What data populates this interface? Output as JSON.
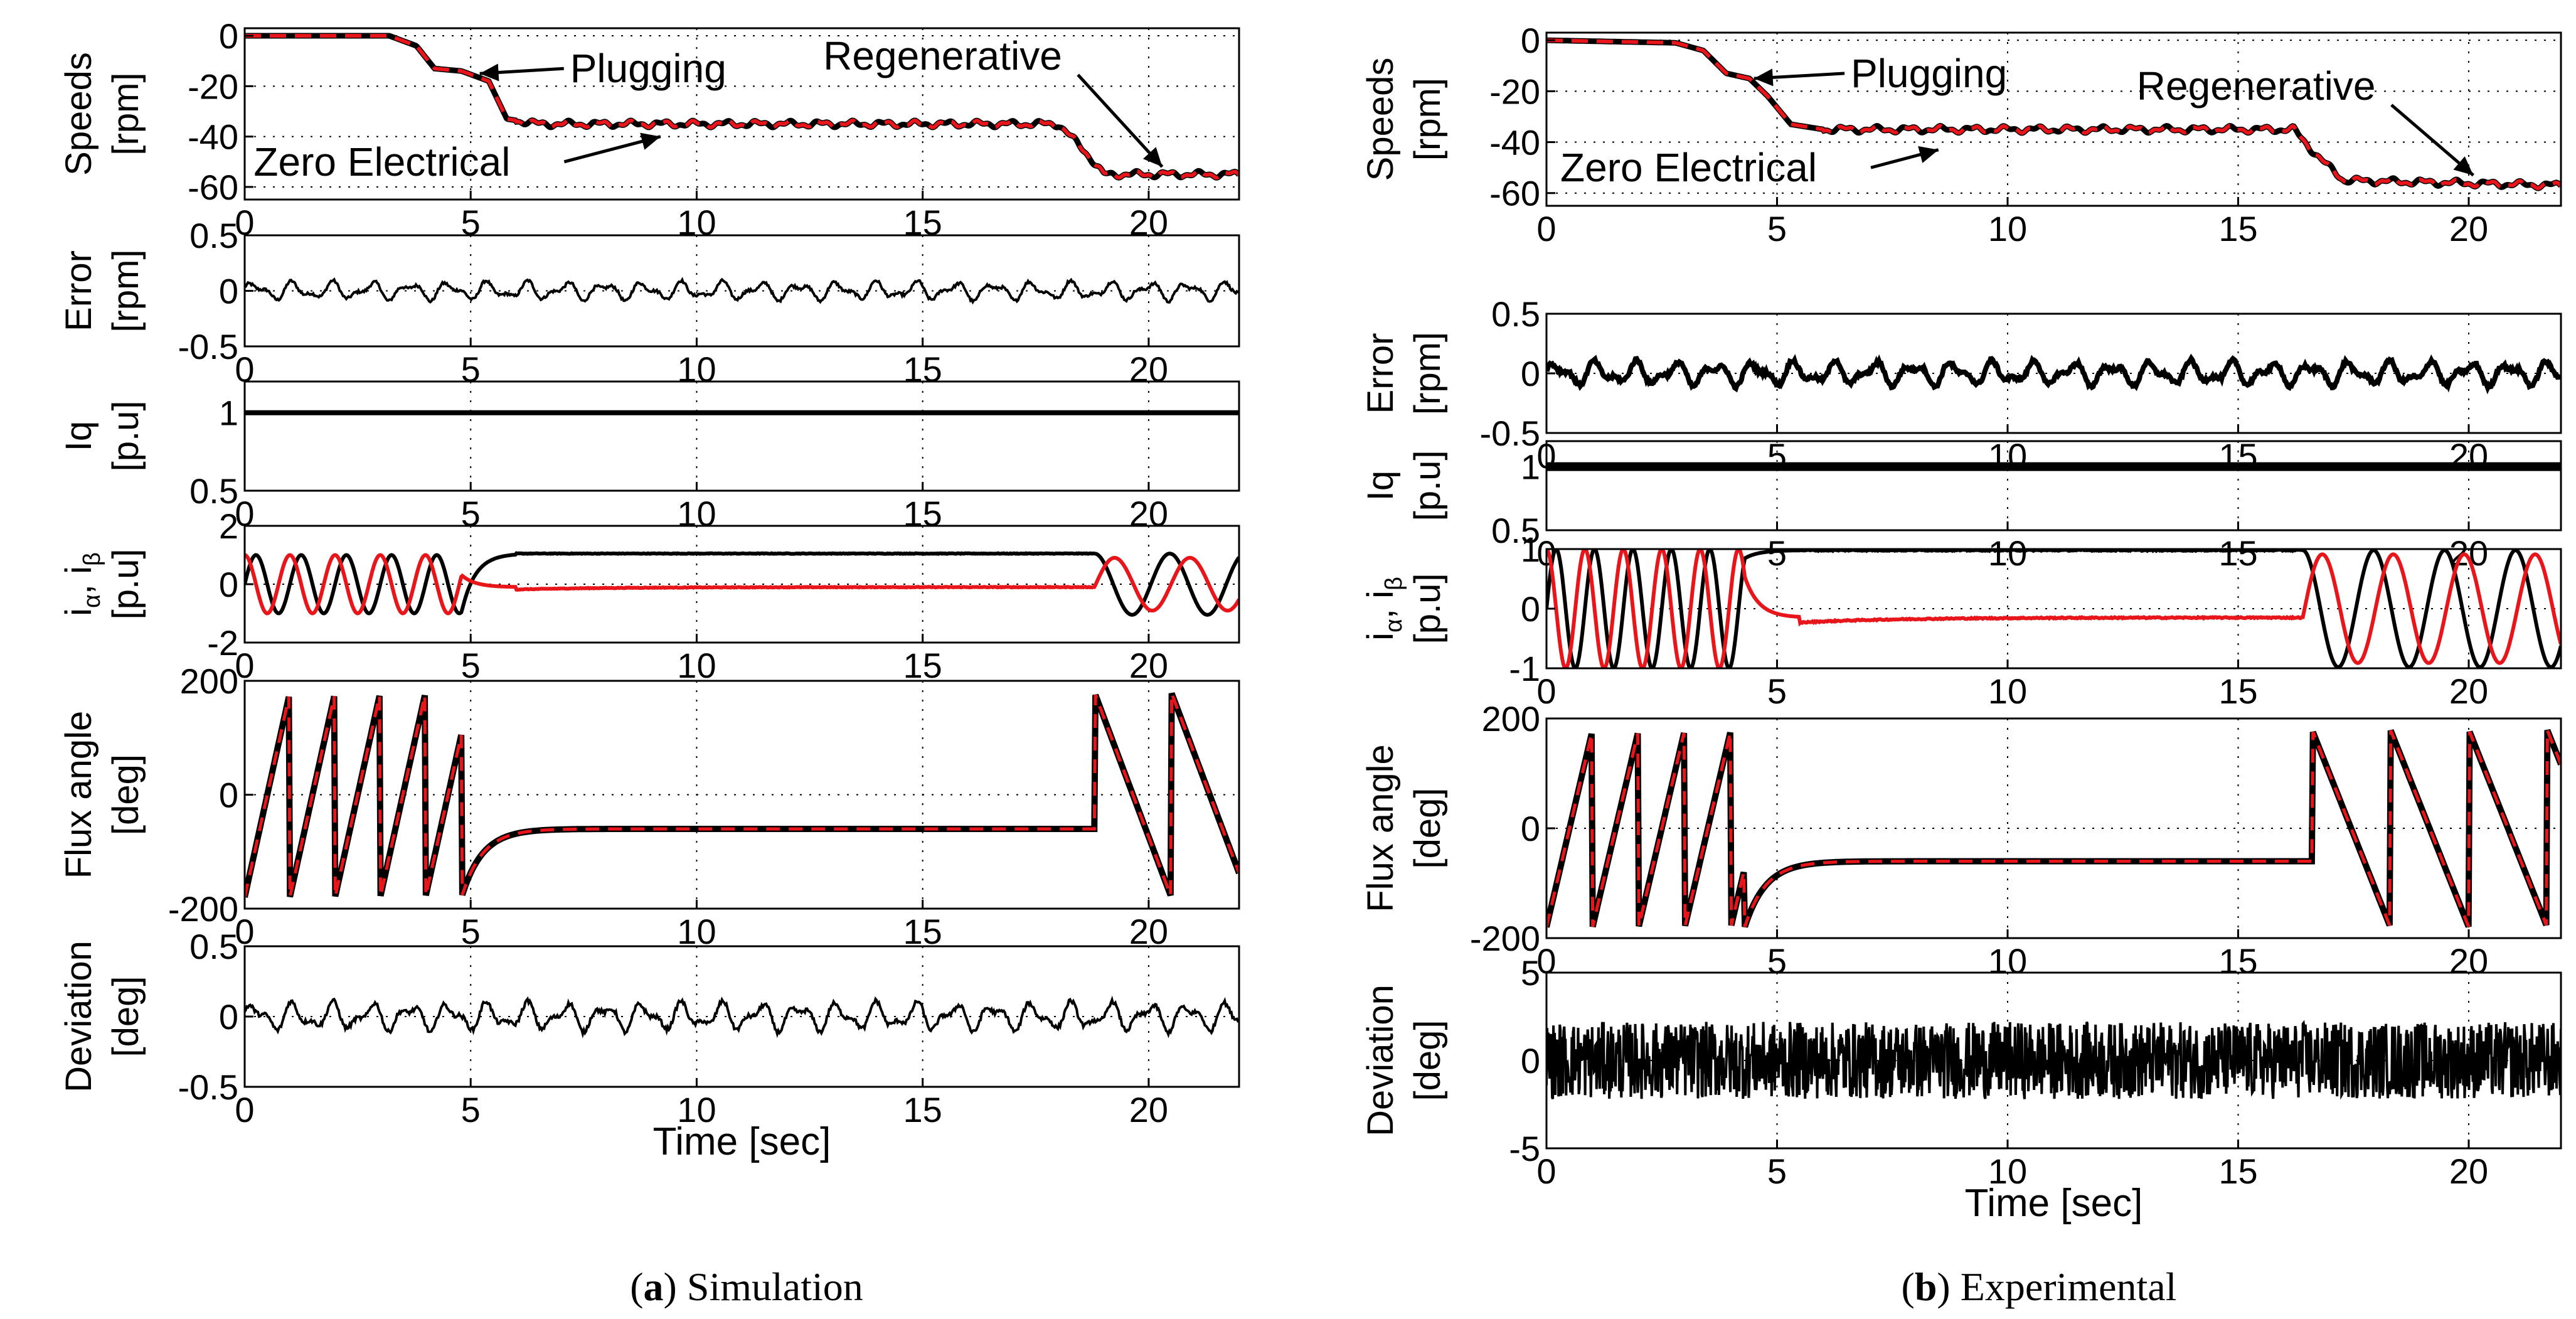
{
  "chart_data": [
    {
      "type": "line",
      "caption": {
        "letter": "a",
        "text": ") Simulation",
        "open": "("
      },
      "xlabel": "Time [sec]",
      "xlim": [
        0,
        22
      ],
      "xticks": [
        0,
        5,
        10,
        15,
        20
      ],
      "colors": {
        "measured": "#000000",
        "estimated": "#e8151b"
      },
      "panels": [
        {
          "key": "speed",
          "ylabel_lines": [
            "Speeds",
            "[rpm]"
          ],
          "ylim": [
            -65,
            3
          ],
          "yticks": [
            0,
            -20,
            -40,
            -60
          ],
          "series": [
            {
              "style": "solid-black",
              "points": [
                [
                  0,
                  0
                ],
                [
                  3.2,
                  0
                ],
                [
                  3.8,
                  -4
                ],
                [
                  4.2,
                  -13
                ],
                [
                  4.8,
                  -14
                ],
                [
                  5.4,
                  -18
                ],
                [
                  5.8,
                  -33
                ],
                [
                  6.5,
                  -35
                ],
                [
                  18,
                  -35
                ],
                [
                  18.6,
                  -46
                ],
                [
                  19,
                  -55
                ],
                [
                  22,
                  -55
                ]
              ]
            },
            {
              "style": "dashed-red",
              "points": [
                [
                  0,
                  0
                ],
                [
                  3.2,
                  0
                ],
                [
                  3.8,
                  -4
                ],
                [
                  4.2,
                  -13
                ],
                [
                  4.8,
                  -14
                ],
                [
                  5.4,
                  -18
                ],
                [
                  5.8,
                  -33
                ],
                [
                  6.5,
                  -35
                ],
                [
                  18,
                  -35
                ],
                [
                  18.6,
                  -46
                ],
                [
                  19,
                  -55
                ],
                [
                  22,
                  -55
                ]
              ]
            }
          ],
          "annotations": [
            {
              "text": "Plugging",
              "x": 7.2,
              "y": -13,
              "arrow_to": [
                5.2,
                -15
              ]
            },
            {
              "text": "Zero Electrical",
              "x": 0.2,
              "y": -50,
              "arrow_to": [
                9.2,
                -40
              ]
            },
            {
              "text": "Regenerative",
              "x": 12.8,
              "y": -8,
              "arrow_to": [
                20.3,
                -52
              ]
            }
          ]
        },
        {
          "key": "error",
          "ylabel_lines": [
            "Error",
            "[rpm]"
          ],
          "ylim": [
            -0.5,
            0.5
          ],
          "yticks": [
            0.5,
            0,
            -0.5
          ],
          "series": [
            {
              "style": "noise-black",
              "amplitude": 0.1
            }
          ]
        },
        {
          "key": "iq",
          "ylabel_lines": [
            "Iq",
            "[p.u]"
          ],
          "ylim": [
            0.5,
            1.2
          ],
          "yticks": [
            1,
            0.5
          ],
          "series": [
            {
              "style": "const-black",
              "value": 1
            }
          ]
        },
        {
          "key": "current",
          "ylabel_lines": [
            "i",
            "[p.u]"
          ],
          "ylim": [
            -2,
            2
          ],
          "yticks": [
            2,
            0,
            -2
          ],
          "series": [
            {
              "style": "current-black",
              "early_freq": 1.0,
              "late_freq": 0.6,
              "transition": [
                4.8,
                18.8
              ],
              "dc": 1.05,
              "phase": 0
            },
            {
              "style": "current-red",
              "early_freq": 1.0,
              "late_freq": 0.6,
              "transition": [
                4.8,
                18.8
              ],
              "dc": -0.1,
              "phase": 1.5708
            }
          ]
        },
        {
          "key": "flux",
          "ylabel_lines": [
            "Flux angle",
            "[deg]"
          ],
          "ylim": [
            -200,
            200
          ],
          "yticks": [
            200,
            0,
            -200
          ],
          "series": [
            {
              "style": "saw-both",
              "early_period": 1.0,
              "late_period": 1.7,
              "transition": [
                4.8,
                18.8
              ],
              "flat": -60
            }
          ]
        },
        {
          "key": "deviation",
          "ylabel_lines": [
            "Deviation",
            "[deg]"
          ],
          "ylim": [
            -0.5,
            0.5
          ],
          "yticks": [
            0.5,
            0,
            -0.5
          ],
          "series": [
            {
              "style": "noise-black",
              "amplitude": 0.12
            }
          ]
        }
      ]
    },
    {
      "type": "line",
      "caption": {
        "letter": "b",
        "text": ") Experimental",
        "open": "("
      },
      "xlabel": "Time [sec]",
      "xlim": [
        0,
        22
      ],
      "xticks": [
        0,
        5,
        10,
        15,
        20
      ],
      "colors": {
        "measured": "#000000",
        "estimated": "#e8151b"
      },
      "panels": [
        {
          "key": "speed",
          "ylabel_lines": [
            "Speeds",
            "[rpm]"
          ],
          "ylim": [
            -65,
            3
          ],
          "yticks": [
            0,
            -20,
            -40,
            -60
          ],
          "series": [
            {
              "style": "solid-black",
              "points": [
                [
                  0,
                  0
                ],
                [
                  2.8,
                  -1
                ],
                [
                  3.4,
                  -4
                ],
                [
                  3.9,
                  -13
                ],
                [
                  4.4,
                  -15
                ],
                [
                  4.8,
                  -22
                ],
                [
                  5.3,
                  -33
                ],
                [
                  6,
                  -35
                ],
                [
                  16.2,
                  -35
                ],
                [
                  16.8,
                  -47
                ],
                [
                  17.3,
                  -55
                ],
                [
                  22,
                  -57
                ]
              ]
            },
            {
              "style": "dashed-red",
              "points": [
                [
                  0,
                  0
                ],
                [
                  2.8,
                  -1
                ],
                [
                  3.4,
                  -4
                ],
                [
                  3.9,
                  -13
                ],
                [
                  4.4,
                  -15
                ],
                [
                  4.8,
                  -22
                ],
                [
                  5.3,
                  -33
                ],
                [
                  6,
                  -35
                ],
                [
                  16.2,
                  -35
                ],
                [
                  16.8,
                  -47
                ],
                [
                  17.3,
                  -55
                ],
                [
                  22,
                  -57
                ]
              ]
            }
          ],
          "annotations": [
            {
              "text": "Plugging",
              "x": 6.6,
              "y": -13,
              "arrow_to": [
                4.5,
                -15
              ]
            },
            {
              "text": "Zero Electrical",
              "x": 0.3,
              "y": -50,
              "arrow_to": [
                8.5,
                -43
              ]
            },
            {
              "text": "Regenerative",
              "x": 12.8,
              "y": -18,
              "arrow_to": [
                20.1,
                -53
              ]
            }
          ]
        },
        {
          "key": "error",
          "ylabel_lines": [
            "Error",
            "[rpm]"
          ],
          "ylim": [
            -0.5,
            0.5
          ],
          "yticks": [
            0.5,
            0,
            -0.5
          ],
          "series": [
            {
              "style": "noise-black-thick",
              "amplitude": 0.12
            }
          ]
        },
        {
          "key": "iq",
          "ylabel_lines": [
            "Iq",
            "[p.u]"
          ],
          "ylim": [
            0.5,
            1.2
          ],
          "yticks": [
            1,
            0.5
          ],
          "series": [
            {
              "style": "const-black-thick",
              "value": 1
            }
          ]
        },
        {
          "key": "current",
          "ylabel_lines": [
            "i",
            "[p.u]"
          ],
          "ylim": [
            -1,
            1
          ],
          "yticks": [
            1,
            0,
            -1
          ],
          "series": [
            {
              "style": "current-black",
              "early_freq": 1.2,
              "late_freq": 0.65,
              "transition": [
                4.3,
                16.4
              ],
              "dc": 0.98,
              "phase": 0
            },
            {
              "style": "current-red",
              "early_freq": 1.2,
              "late_freq": 0.65,
              "transition": [
                4.3,
                16.4
              ],
              "dc": -0.15,
              "phase": 1.5708
            }
          ]
        },
        {
          "key": "flux",
          "ylabel_lines": [
            "Flux angle",
            "[deg]"
          ],
          "ylim": [
            -200,
            200
          ],
          "yticks": [
            200,
            0,
            -200
          ],
          "series": [
            {
              "style": "saw-both",
              "early_period": 1.0,
              "late_period": 1.7,
              "transition": [
                4.3,
                16.6
              ],
              "flat": -60
            }
          ]
        },
        {
          "key": "deviation",
          "ylabel_lines": [
            "Deviation",
            "[deg]"
          ],
          "ylim": [
            -5,
            5
          ],
          "yticks": [
            5,
            0,
            -5
          ],
          "series": [
            {
              "style": "band-black",
              "amplitude": 2.2
            }
          ]
        }
      ]
    }
  ]
}
